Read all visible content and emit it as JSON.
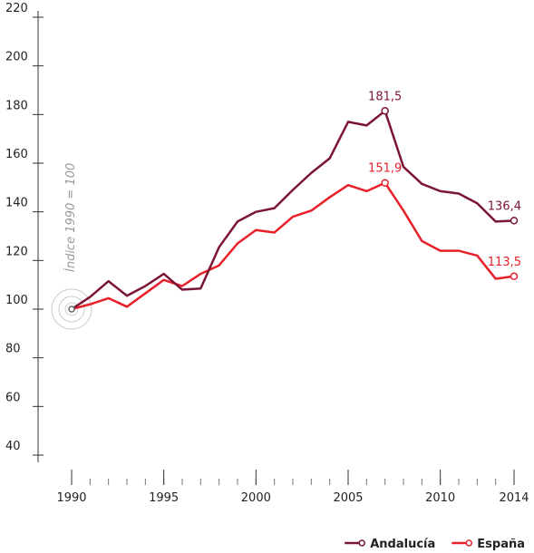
{
  "chart_data": {
    "type": "line",
    "y_label": "Índice 1990 = 100",
    "x": [
      1990,
      1991,
      1992,
      1993,
      1994,
      1995,
      1996,
      1997,
      1998,
      1999,
      2000,
      2001,
      2002,
      2003,
      2004,
      2005,
      2006,
      2007,
      2008,
      2009,
      2010,
      2011,
      2012,
      2013,
      2014
    ],
    "series": [
      {
        "name": "Andalucía",
        "color": "#7b1535",
        "values": [
          100,
          105,
          111.5,
          105.5,
          109.5,
          114.5,
          108,
          108.5,
          125.5,
          136,
          140,
          141.5,
          149,
          156,
          162,
          177,
          175.5,
          181.5,
          158.5,
          151.5,
          148.5,
          147.5,
          143.5,
          136,
          136.4
        ],
        "value_labels": [
          null,
          null,
          null,
          null,
          null,
          null,
          null,
          null,
          null,
          null,
          null,
          null,
          null,
          null,
          null,
          null,
          null,
          "181,5",
          null,
          null,
          null,
          null,
          null,
          null,
          "136,4"
        ]
      },
      {
        "name": "España",
        "color": "#e8202a",
        "values": [
          100,
          102,
          104.5,
          101,
          106.5,
          112,
          109.5,
          114.5,
          118,
          127,
          132.5,
          131.5,
          138,
          140.5,
          146,
          151,
          148.5,
          151.9,
          140.5,
          128,
          124,
          124,
          122,
          112.5,
          113.5
        ],
        "value_labels": [
          null,
          null,
          null,
          null,
          null,
          null,
          null,
          null,
          null,
          null,
          null,
          null,
          null,
          null,
          null,
          null,
          null,
          "151,9",
          null,
          null,
          null,
          null,
          null,
          null,
          "113,5"
        ]
      }
    ],
    "xlim": [
      1990,
      2014
    ],
    "xticks": [
      1990,
      1995,
      2000,
      2005,
      2010,
      2014
    ],
    "ylim": [
      40,
      220
    ],
    "yticks": [
      40,
      60,
      80,
      100,
      120,
      140,
      160,
      180,
      200,
      220
    ],
    "legend": "bottom-right"
  }
}
